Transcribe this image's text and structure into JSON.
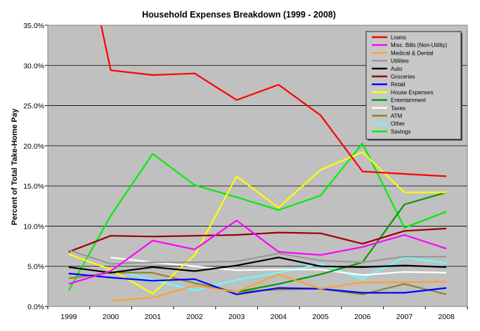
{
  "chart_data": {
    "type": "line",
    "title": "Household Expenses Breakdown (1999 - 2008)",
    "xlabel": "",
    "ylabel": "Percent of Total Take-Home Pay",
    "x": [
      "1999",
      "2000",
      "2001",
      "2002",
      "2003",
      "2004",
      "2005",
      "2006",
      "2007",
      "2008"
    ],
    "ylim": [
      0,
      35
    ],
    "yticks": [
      "0.0%",
      "5.0%",
      "10.0%",
      "15.0%",
      "20.0%",
      "25.0%",
      "30.0%",
      "35.0%"
    ],
    "grid": "horizontal",
    "legend_position": "top-right",
    "series": [
      {
        "name": "Loans",
        "color": "#ff0000",
        "values": [
          null,
          29.4,
          28.8,
          29.0,
          25.7,
          27.6,
          23.8,
          16.8,
          16.5,
          16.2
        ]
      },
      {
        "name": "Misc. Bills (Non-Utility)",
        "color": "#ff00ff",
        "values": [
          2.8,
          4.4,
          8.2,
          7.1,
          10.7,
          6.8,
          6.4,
          7.4,
          8.9,
          7.2
        ]
      },
      {
        "name": "Medical & Dental",
        "color": "#ffa030",
        "values": [
          null,
          0.7,
          1.1,
          2.6,
          1.8,
          4.0,
          2.2,
          3.0,
          3.0,
          3.1
        ]
      },
      {
        "name": "Utilities",
        "color": "#999999",
        "values": [
          7.0,
          5.3,
          5.5,
          5.5,
          5.6,
          6.6,
          5.7,
          5.5,
          6.2,
          6.2
        ]
      },
      {
        "name": "Auto",
        "color": "#000000",
        "values": [
          4.9,
          4.2,
          4.9,
          4.4,
          5.1,
          6.1,
          5.0,
          4.9,
          5.1,
          4.9
        ]
      },
      {
        "name": "Groceries",
        "color": "#990000",
        "values": [
          6.8,
          8.8,
          8.7,
          8.8,
          8.9,
          9.2,
          9.1,
          7.8,
          9.4,
          9.7
        ]
      },
      {
        "name": "Retail",
        "color": "#0000ff",
        "values": [
          4.1,
          3.6,
          3.2,
          3.4,
          1.5,
          2.3,
          2.2,
          1.7,
          1.7,
          2.3
        ]
      },
      {
        "name": "House Expenses",
        "color": "#ffff00",
        "values": [
          6.5,
          4.6,
          1.6,
          6.4,
          16.2,
          12.3,
          17.0,
          19.2,
          14.2,
          14.2
        ]
      },
      {
        "name": "Entertainment",
        "color": "#009900",
        "values": [
          null,
          null,
          null,
          null,
          1.8,
          2.8,
          4.0,
          5.5,
          12.7,
          14.2
        ]
      },
      {
        "name": "Taxes",
        "color": "#ffffff",
        "values": [
          null,
          6.1,
          5.5,
          5.0,
          4.5,
          4.6,
          4.6,
          3.9,
          4.3,
          4.2
        ]
      },
      {
        "name": "ATM",
        "color": "#888833",
        "values": [
          3.5,
          4.2,
          4.2,
          2.9,
          1.8,
          2.1,
          2.2,
          1.5,
          2.8,
          1.5
        ]
      },
      {
        "name": "Other",
        "color": "#66ffff",
        "values": [
          null,
          4.6,
          3.3,
          2.0,
          3.3,
          4.2,
          5.3,
          3.4,
          6.1,
          5.4
        ]
      },
      {
        "name": "Savings",
        "color": "#00ee00",
        "values": [
          2.0,
          11.3,
          19.0,
          15.1,
          13.6,
          12.0,
          13.8,
          20.3,
          9.8,
          11.8
        ]
      }
    ]
  }
}
